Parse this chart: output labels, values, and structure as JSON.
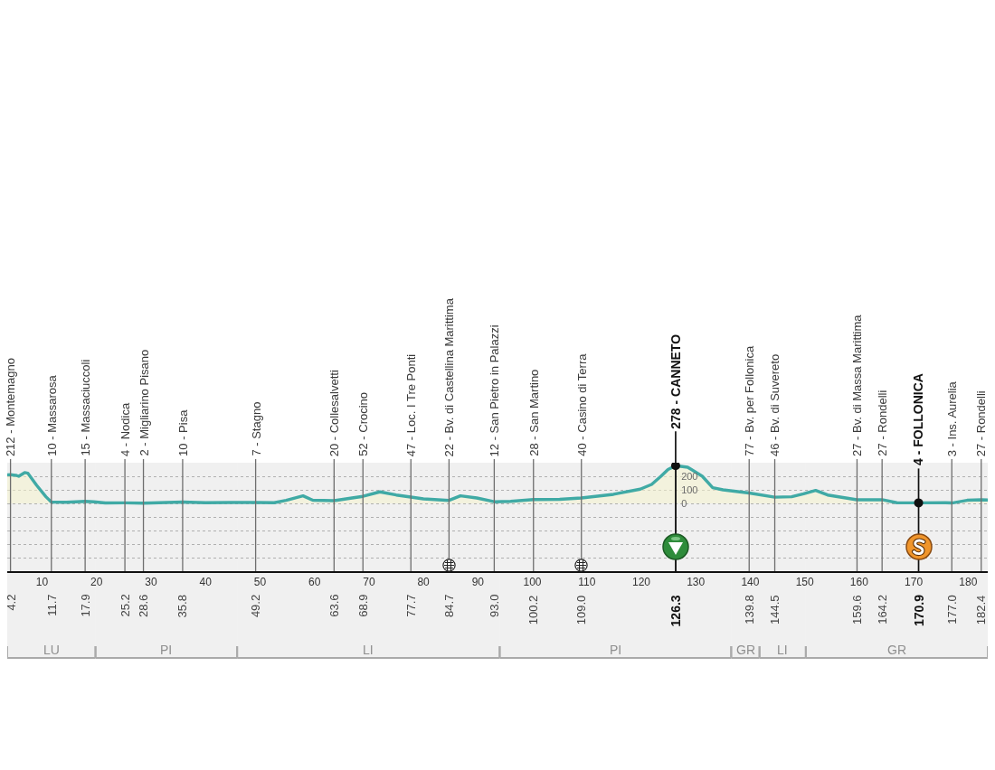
{
  "chart_data": {
    "type": "area",
    "color": "#40aaa5",
    "x": [
      3.6,
      4.2,
      5.2,
      5.7,
      6.8,
      7.4,
      9.0,
      10.7,
      11.7,
      14.5,
      17.9,
      19.5,
      21.6,
      25.2,
      28.6,
      35.8,
      40.0,
      45.0,
      49.2,
      52.6,
      54.8,
      57.9,
      59.7,
      63.6,
      66.9,
      68.9,
      72.0,
      75.0,
      77.7,
      80.0,
      84.7,
      86.8,
      89.8,
      93.0,
      96.0,
      100.2,
      105.0,
      109.0,
      114.9,
      119.8,
      121.9,
      123.6,
      124.9,
      126.3,
      128.5,
      131.2,
      133.1,
      135.0,
      139.8,
      144.5,
      147.6,
      149.8,
      152.0,
      154.2,
      159.6,
      164.2,
      166.9,
      170.9,
      175.9,
      177.0,
      179.8,
      182.4,
      183.6
    ],
    "values": [
      211,
      212,
      207,
      200,
      227,
      222,
      133,
      49,
      10,
      8,
      15,
      12,
      3,
      4,
      2,
      10,
      5,
      7,
      7,
      5,
      22,
      56,
      23,
      20,
      40,
      52,
      85,
      62,
      47,
      33,
      22,
      56,
      40,
      12,
      15,
      28,
      30,
      40,
      67,
      105,
      140,
      200,
      250,
      278,
      267,
      200,
      116,
      100,
      77,
      46,
      49,
      71,
      96,
      62,
      27,
      27,
      5,
      4,
      5,
      3,
      23,
      27,
      25
    ],
    "xlim": [
      3.6,
      183.6
    ],
    "xticks": [
      10,
      20,
      30,
      40,
      50,
      60,
      70,
      80,
      90,
      100,
      110,
      120,
      130,
      140,
      150,
      160,
      170,
      180
    ],
    "ylim": [
      -500,
      300
    ],
    "yticks": [
      {
        "value": -400,
        "label": null
      },
      {
        "value": -300,
        "label": null
      },
      {
        "value": -200,
        "label": null
      },
      {
        "value": -100,
        "label": null
      },
      0,
      100,
      200
    ],
    "grid": "y",
    "ref_lines": [
      {
        "axis": "x",
        "value": 4.2,
        "label": "212 - Montemagno"
      },
      {
        "axis": "x",
        "value": 11.7,
        "label": "10 - Massarosa"
      },
      {
        "axis": "x",
        "value": 17.9,
        "label": "15 - Massaciuccoli"
      },
      {
        "axis": "x",
        "value": 25.2,
        "label": "4 - Nodica"
      },
      {
        "axis": "x",
        "value": 28.6,
        "label": "2 - Migliarino Pisano"
      },
      {
        "axis": "x",
        "value": 35.8,
        "label": "10 - Pisa"
      },
      {
        "axis": "x",
        "value": 49.2,
        "label": "7 - Stagno"
      },
      {
        "axis": "x",
        "value": 63.6,
        "label": "20 - Collesalvetti"
      },
      {
        "axis": "x",
        "value": 68.9,
        "label": "52 - Crocino"
      },
      {
        "axis": "x",
        "value": 77.7,
        "label": "47 - Loc. I Tre Ponti"
      },
      {
        "axis": "x",
        "value": 84.7,
        "label": "22 - Bv. di Castellina Marittima"
      },
      {
        "axis": "x",
        "value": 93.0,
        "label": "12 - San Pietro in Palazzi"
      },
      {
        "axis": "x",
        "value": 100.2,
        "label": "28 - San Martino"
      },
      {
        "axis": "x",
        "value": 109.0,
        "label": "40 - Casino di Terra"
      },
      {
        "axis": "x",
        "value": 126.3,
        "label": "278 - CANNETO",
        "color": "#111111"
      },
      {
        "axis": "x",
        "value": 139.8,
        "label": "77 - Bv. per Follonica"
      },
      {
        "axis": "x",
        "value": 144.5,
        "label": "46 - Bv. di Suvereto"
      },
      {
        "axis": "x",
        "value": 159.6,
        "label": "27 - Bv. di Massa Marittima"
      },
      {
        "axis": "x",
        "value": 164.2,
        "label": "27 - Rondelli"
      },
      {
        "axis": "x",
        "value": 170.9,
        "label": "4 - FOLLONICA",
        "color": "#111111"
      },
      {
        "axis": "x",
        "value": 177.0,
        "label": "3 - Ins. Aurelia"
      },
      {
        "axis": "x",
        "value": 182.4,
        "label": "27 - Rondelli"
      }
    ],
    "annotations": [
      {
        "text": "4.2",
        "x": 4.2,
        "y": -500
      },
      {
        "text": "11.7",
        "x": 11.7,
        "y": -500
      },
      {
        "text": "17.9",
        "x": 17.9,
        "y": -500
      },
      {
        "text": "25.2",
        "x": 25.2,
        "y": -500
      },
      {
        "text": "28.6",
        "x": 28.6,
        "y": -500
      },
      {
        "text": "35.8",
        "x": 35.8,
        "y": -500
      },
      {
        "text": "49.2",
        "x": 49.2,
        "y": -500
      },
      {
        "text": "63.6",
        "x": 63.6,
        "y": -500
      },
      {
        "text": "68.9",
        "x": 68.9,
        "y": -500
      },
      {
        "text": "77.7",
        "x": 77.7,
        "y": -500
      },
      {
        "text": "84.7",
        "x": 84.7,
        "y": -500
      },
      {
        "text": "93.0",
        "x": 93.0,
        "y": -500
      },
      {
        "text": "100.2",
        "x": 100.2,
        "y": -500
      },
      {
        "text": "109.0",
        "x": 109.0,
        "y": -500
      },
      {
        "text": "126.3",
        "x": 126.3,
        "y": -500
      },
      {
        "text": "139.8",
        "x": 139.8,
        "y": -500
      },
      {
        "text": "144.5",
        "x": 144.5,
        "y": -500
      },
      {
        "text": "159.6",
        "x": 159.6,
        "y": -500
      },
      {
        "text": "164.2",
        "x": 164.2,
        "y": -500
      },
      {
        "text": "170.9",
        "x": 170.9,
        "y": -500
      },
      {
        "text": "177.0",
        "x": 177.0,
        "y": -500
      },
      {
        "text": "182.4",
        "x": 182.4,
        "y": -500
      }
    ],
    "bands": [
      {
        "axis": "x",
        "from": 3.6,
        "to": 19.8,
        "label": "LU"
      },
      {
        "axis": "x",
        "from": 19.8,
        "to": 45.8,
        "label": "PI"
      },
      {
        "axis": "x",
        "from": 45.8,
        "to": 94.0,
        "label": "LI"
      },
      {
        "axis": "x",
        "from": 94.0,
        "to": 136.5,
        "label": "PI"
      },
      {
        "axis": "x",
        "from": 136.5,
        "to": 141.7,
        "label": "GR"
      },
      {
        "axis": "x",
        "from": 141.7,
        "to": 150.2,
        "label": "LI"
      },
      {
        "axis": "x",
        "from": 150.2,
        "to": 183.6,
        "label": "GR"
      }
    ]
  }
}
